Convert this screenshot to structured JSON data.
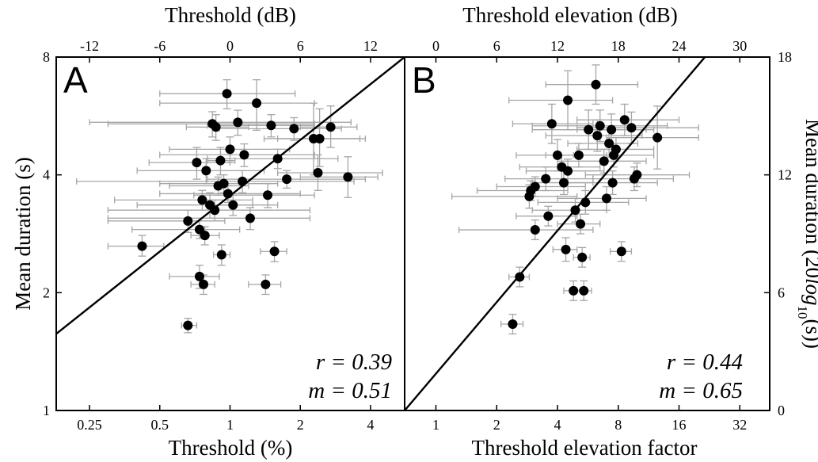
{
  "chart_data": [
    {
      "type": "scatter",
      "panel_label": "A",
      "xlabel": "Threshold (%)",
      "xlabel_top": "Threshold (dB)",
      "ylabel": "Mean duration (s)",
      "x_scale": "log2",
      "y_scale": "log2",
      "xlim": [
        0.18,
        5.6
      ],
      "ylim": [
        1,
        8
      ],
      "x_ticks": [
        {
          "v": 0.25,
          "label": "0.25"
        },
        {
          "v": 0.5,
          "label": "0.5"
        },
        {
          "v": 1,
          "label": "1"
        },
        {
          "v": 2,
          "label": "2"
        },
        {
          "v": 4,
          "label": "4"
        }
      ],
      "x_top_ticks": [
        {
          "v": 0.25,
          "label": "-12"
        },
        {
          "v": 0.5,
          "label": "-6"
        },
        {
          "v": 1,
          "label": "0"
        },
        {
          "v": 2,
          "label": "6"
        },
        {
          "v": 4,
          "label": "12"
        }
      ],
      "y_ticks": [
        {
          "v": 1,
          "label": "1"
        },
        {
          "v": 2,
          "label": "2"
        },
        {
          "v": 4,
          "label": "4"
        },
        {
          "v": 8,
          "label": "8"
        }
      ],
      "points": [
        {
          "x": 0.42,
          "y": 2.63,
          "xlo": 0.3,
          "xhi": 0.52,
          "ylo": 2.48,
          "yhi": 2.8
        },
        {
          "x": 0.66,
          "y": 1.65,
          "xlo": 0.62,
          "xhi": 0.72,
          "ylo": 1.58,
          "yhi": 1.72
        },
        {
          "x": 0.66,
          "y": 3.05,
          "xlo": 0.3,
          "xhi": 0.95,
          "ylo": 2.85,
          "yhi": 3.25
        },
        {
          "x": 0.72,
          "y": 4.3,
          "xlo": 0.45,
          "xhi": 1.0,
          "ylo": 3.9,
          "yhi": 4.7
        },
        {
          "x": 0.74,
          "y": 2.9,
          "xlo": 0.38,
          "xhi": 1.1,
          "ylo": 2.75,
          "yhi": 3.05
        },
        {
          "x": 0.74,
          "y": 2.2,
          "xlo": 0.55,
          "xhi": 0.9,
          "ylo": 2.05,
          "yhi": 2.35
        },
        {
          "x": 0.76,
          "y": 3.45,
          "xlo": 0.32,
          "xhi": 1.25,
          "ylo": 3.25,
          "yhi": 3.65
        },
        {
          "x": 0.77,
          "y": 2.1,
          "xlo": 0.68,
          "xhi": 0.86,
          "ylo": 1.98,
          "yhi": 2.22
        },
        {
          "x": 0.78,
          "y": 2.8,
          "xlo": 0.68,
          "xhi": 0.9,
          "ylo": 2.65,
          "yhi": 2.95
        },
        {
          "x": 0.79,
          "y": 4.1,
          "xlo": 0.4,
          "xhi": 1.4,
          "ylo": 3.8,
          "yhi": 4.4
        },
        {
          "x": 0.82,
          "y": 3.35,
          "xlo": 0.4,
          "xhi": 1.6,
          "ylo": 3.1,
          "yhi": 3.6
        },
        {
          "x": 0.84,
          "y": 5.4,
          "xlo": 0.3,
          "xhi": 2.3,
          "ylo": 5.0,
          "yhi": 5.8
        },
        {
          "x": 0.86,
          "y": 3.25,
          "xlo": 0.3,
          "xhi": 2.2,
          "ylo": 3.05,
          "yhi": 3.45
        },
        {
          "x": 0.87,
          "y": 5.3,
          "xlo": 0.65,
          "xhi": 1.2,
          "ylo": 4.9,
          "yhi": 5.7
        },
        {
          "x": 0.89,
          "y": 3.75,
          "xlo": 0.55,
          "xhi": 1.2,
          "ylo": 3.55,
          "yhi": 3.95
        },
        {
          "x": 0.91,
          "y": 4.35,
          "xlo": 0.8,
          "xhi": 1.05,
          "ylo": 4.0,
          "yhi": 4.7
        },
        {
          "x": 0.92,
          "y": 2.5,
          "xlo": 0.85,
          "xhi": 1.0,
          "ylo": 2.35,
          "yhi": 2.65
        },
        {
          "x": 0.94,
          "y": 3.8,
          "xlo": 0.5,
          "xhi": 1.6,
          "ylo": 3.6,
          "yhi": 4.0
        },
        {
          "x": 0.98,
          "y": 3.58,
          "xlo": 0.5,
          "xhi": 2.0,
          "ylo": 3.4,
          "yhi": 3.75
        },
        {
          "x": 0.97,
          "y": 6.45,
          "xlo": 0.5,
          "xhi": 1.9,
          "ylo": 5.9,
          "yhi": 7.0
        },
        {
          "x": 1.0,
          "y": 4.65,
          "xlo": 0.55,
          "xhi": 1.8,
          "ylo": 4.3,
          "yhi": 5.0
        },
        {
          "x": 1.03,
          "y": 3.35,
          "xlo": 0.85,
          "xhi": 1.25,
          "ylo": 3.15,
          "yhi": 3.55
        },
        {
          "x": 1.08,
          "y": 5.45,
          "xlo": 0.25,
          "xhi": 3.3,
          "ylo": 5.05,
          "yhi": 5.85
        },
        {
          "x": 1.13,
          "y": 3.85,
          "xlo": 0.22,
          "xhi": 3.4,
          "ylo": 3.6,
          "yhi": 4.1
        },
        {
          "x": 1.15,
          "y": 4.5,
          "xlo": 0.5,
          "xhi": 2.3,
          "ylo": 4.2,
          "yhi": 4.8
        },
        {
          "x": 1.22,
          "y": 3.1,
          "xlo": 0.3,
          "xhi": 2.2,
          "ylo": 2.9,
          "yhi": 3.3
        },
        {
          "x": 1.3,
          "y": 6.1,
          "xlo": 0.5,
          "xhi": 2.3,
          "ylo": 5.2,
          "yhi": 7.0
        },
        {
          "x": 1.42,
          "y": 2.1,
          "xlo": 1.2,
          "xhi": 1.65,
          "ylo": 1.98,
          "yhi": 2.22
        },
        {
          "x": 1.45,
          "y": 3.55,
          "xlo": 0.7,
          "xhi": 2.3,
          "ylo": 3.3,
          "yhi": 3.8
        },
        {
          "x": 1.5,
          "y": 5.35,
          "xlo": 0.8,
          "xhi": 2.3,
          "ylo": 5.0,
          "yhi": 5.7
        },
        {
          "x": 1.55,
          "y": 2.55,
          "xlo": 1.35,
          "xhi": 1.75,
          "ylo": 2.4,
          "yhi": 2.7
        },
        {
          "x": 1.6,
          "y": 4.4,
          "xlo": 0.8,
          "xhi": 2.9,
          "ylo": 4.15,
          "yhi": 4.65
        },
        {
          "x": 1.75,
          "y": 3.9,
          "xlo": 0.8,
          "xhi": 3.8,
          "ylo": 3.7,
          "yhi": 4.1
        },
        {
          "x": 1.88,
          "y": 5.25,
          "xlo": 0.9,
          "xhi": 3.0,
          "ylo": 4.9,
          "yhi": 5.6
        },
        {
          "x": 2.28,
          "y": 4.95,
          "xlo": 1.4,
          "xhi": 3.8,
          "ylo": 4.0,
          "yhi": 6.1
        },
        {
          "x": 2.38,
          "y": 4.05,
          "xlo": 1.6,
          "xhi": 4.5,
          "ylo": 3.65,
          "yhi": 4.5
        },
        {
          "x": 2.42,
          "y": 4.95,
          "xlo": 1.6,
          "xhi": 3.6,
          "ylo": 4.2,
          "yhi": 5.9
        },
        {
          "x": 2.7,
          "y": 5.3,
          "xlo": 2.0,
          "xhi": 3.5,
          "ylo": 4.7,
          "yhi": 6.0
        },
        {
          "x": 3.2,
          "y": 3.95,
          "xlo": 2.0,
          "xhi": 4.3,
          "ylo": 3.5,
          "yhi": 4.45
        }
      ],
      "fit_line": [
        {
          "x": 0.18,
          "y": 1.57
        },
        {
          "x": 5.6,
          "y": 8.0
        }
      ],
      "annotations": [
        "r = 0.39",
        "m = 0.51"
      ]
    },
    {
      "type": "scatter",
      "panel_label": "B",
      "xlabel": "Threshold elevation factor",
      "xlabel_top": "Threshold elevation (dB)",
      "ylabel": "Mean duration (20log10(s))",
      "x_scale": "log2",
      "y_scale": "linear_dB",
      "xlim": [
        0.7,
        45
      ],
      "ylim": [
        0,
        18
      ],
      "x_ticks": [
        {
          "v": 1,
          "label": "1"
        },
        {
          "v": 2,
          "label": "2"
        },
        {
          "v": 4,
          "label": "4"
        },
        {
          "v": 8,
          "label": "8"
        },
        {
          "v": 16,
          "label": "16"
        },
        {
          "v": 32,
          "label": "32"
        }
      ],
      "x_top_ticks": [
        {
          "v": 1,
          "label": "0"
        },
        {
          "v": 2,
          "label": "6"
        },
        {
          "v": 4,
          "label": "12"
        },
        {
          "v": 8,
          "label": "18"
        },
        {
          "v": 16,
          "label": "24"
        },
        {
          "v": 32,
          "label": "30"
        }
      ],
      "y_ticks": [
        {
          "v": 0,
          "label": "0"
        },
        {
          "v": 6,
          "label": "6"
        },
        {
          "v": 12,
          "label": "12"
        },
        {
          "v": 18,
          "label": "18"
        }
      ],
      "points": [
        {
          "x": 2.4,
          "y": 4.4,
          "xlo": 2.1,
          "xhi": 2.7,
          "ylo": 3.9,
          "yhi": 4.9
        },
        {
          "x": 2.6,
          "y": 6.8,
          "xlo": 2.3,
          "xhi": 2.9,
          "ylo": 6.3,
          "yhi": 7.3
        },
        {
          "x": 2.9,
          "y": 10.9,
          "xlo": 1.2,
          "xhi": 5.0,
          "ylo": 10.3,
          "yhi": 11.5
        },
        {
          "x": 2.95,
          "y": 11.2,
          "xlo": 1.6,
          "xhi": 4.5,
          "ylo": 10.7,
          "yhi": 11.7
        },
        {
          "x": 3.1,
          "y": 9.2,
          "xlo": 1.3,
          "xhi": 6.0,
          "ylo": 8.7,
          "yhi": 9.7
        },
        {
          "x": 3.1,
          "y": 11.4,
          "xlo": 2.0,
          "xhi": 5.5,
          "ylo": 10.9,
          "yhi": 11.9
        },
        {
          "x": 3.5,
          "y": 11.8,
          "xlo": 2.2,
          "xhi": 6.0,
          "ylo": 11.2,
          "yhi": 12.4
        },
        {
          "x": 3.6,
          "y": 9.9,
          "xlo": 2.5,
          "xhi": 5.0,
          "ylo": 9.4,
          "yhi": 10.4
        },
        {
          "x": 3.75,
          "y": 14.6,
          "xlo": 2.4,
          "xhi": 6.0,
          "ylo": 13.6,
          "yhi": 15.6
        },
        {
          "x": 4.0,
          "y": 13.0,
          "xlo": 2.5,
          "xhi": 7.0,
          "ylo": 12.2,
          "yhi": 13.8
        },
        {
          "x": 4.2,
          "y": 12.4,
          "xlo": 2.6,
          "xhi": 6.5,
          "ylo": 11.8,
          "yhi": 13.0
        },
        {
          "x": 4.3,
          "y": 11.6,
          "xlo": 3.0,
          "xhi": 6.0,
          "ylo": 11.0,
          "yhi": 12.2
        },
        {
          "x": 4.4,
          "y": 8.2,
          "xlo": 3.8,
          "xhi": 5.0,
          "ylo": 7.6,
          "yhi": 8.8
        },
        {
          "x": 4.5,
          "y": 15.8,
          "xlo": 2.3,
          "xhi": 7.5,
          "ylo": 14.3,
          "yhi": 17.3
        },
        {
          "x": 4.5,
          "y": 12.2,
          "xlo": 2.8,
          "xhi": 6.8,
          "ylo": 11.6,
          "yhi": 12.8
        },
        {
          "x": 4.8,
          "y": 6.1,
          "xlo": 4.3,
          "xhi": 5.3,
          "ylo": 5.6,
          "yhi": 6.6
        },
        {
          "x": 4.9,
          "y": 10.2,
          "xlo": 3.0,
          "xhi": 7.0,
          "ylo": 9.6,
          "yhi": 10.8
        },
        {
          "x": 5.1,
          "y": 13.0,
          "xlo": 3.5,
          "xhi": 7.5,
          "ylo": 12.4,
          "yhi": 13.6
        },
        {
          "x": 5.2,
          "y": 9.5,
          "xlo": 4.0,
          "xhi": 6.5,
          "ylo": 9.0,
          "yhi": 10.0
        },
        {
          "x": 5.3,
          "y": 7.8,
          "xlo": 4.8,
          "xhi": 5.8,
          "ylo": 7.3,
          "yhi": 8.3
        },
        {
          "x": 5.4,
          "y": 6.1,
          "xlo": 4.9,
          "xhi": 5.9,
          "ylo": 5.6,
          "yhi": 6.6
        },
        {
          "x": 5.5,
          "y": 10.6,
          "xlo": 3.2,
          "xhi": 9.0,
          "ylo": 10.0,
          "yhi": 11.2
        },
        {
          "x": 5.7,
          "y": 14.3,
          "xlo": 3.0,
          "xhi": 12.0,
          "ylo": 13.3,
          "yhi": 15.3
        },
        {
          "x": 6.2,
          "y": 16.6,
          "xlo": 3.5,
          "xhi": 10.0,
          "ylo": 15.6,
          "yhi": 17.6
        },
        {
          "x": 6.3,
          "y": 14.0,
          "xlo": 3.5,
          "xhi": 10.5,
          "ylo": 13.2,
          "yhi": 14.8
        },
        {
          "x": 6.5,
          "y": 14.5,
          "xlo": 3.0,
          "xhi": 14.0,
          "ylo": 13.7,
          "yhi": 15.3
        },
        {
          "x": 6.8,
          "y": 12.7,
          "xlo": 4.0,
          "xhi": 11.0,
          "ylo": 12.1,
          "yhi": 13.3
        },
        {
          "x": 7.0,
          "y": 10.8,
          "xlo": 4.0,
          "xhi": 11.0,
          "ylo": 10.2,
          "yhi": 11.4
        },
        {
          "x": 7.2,
          "y": 13.6,
          "xlo": 4.5,
          "xhi": 10.0,
          "ylo": 12.9,
          "yhi": 14.3
        },
        {
          "x": 7.4,
          "y": 14.3,
          "xlo": 5.0,
          "xhi": 11.0,
          "ylo": 13.5,
          "yhi": 15.1
        },
        {
          "x": 7.5,
          "y": 11.6,
          "xlo": 4.5,
          "xhi": 12.5,
          "ylo": 11.0,
          "yhi": 12.2
        },
        {
          "x": 7.6,
          "y": 13.0,
          "xlo": 4.8,
          "xhi": 12.0,
          "ylo": 12.4,
          "yhi": 13.6
        },
        {
          "x": 7.8,
          "y": 13.3,
          "xlo": 5.0,
          "xhi": 12.0,
          "ylo": 12.7,
          "yhi": 13.9
        },
        {
          "x": 8.3,
          "y": 8.1,
          "xlo": 7.3,
          "xhi": 9.3,
          "ylo": 7.6,
          "yhi": 8.6
        },
        {
          "x": 8.6,
          "y": 14.8,
          "xlo": 5.0,
          "xhi": 16.0,
          "ylo": 14.0,
          "yhi": 15.6
        },
        {
          "x": 9.3,
          "y": 14.4,
          "xlo": 5.0,
          "xhi": 20.0,
          "ylo": 13.6,
          "yhi": 15.2
        },
        {
          "x": 9.6,
          "y": 11.8,
          "xlo": 6.0,
          "xhi": 15.0,
          "ylo": 11.2,
          "yhi": 12.4
        },
        {
          "x": 9.9,
          "y": 12.0,
          "xlo": 5.5,
          "xhi": 18.0,
          "ylo": 11.4,
          "yhi": 12.6
        },
        {
          "x": 12.5,
          "y": 13.9,
          "xlo": 7.0,
          "xhi": 20.0,
          "ylo": 12.3,
          "yhi": 15.5
        }
      ],
      "fit_line": [
        {
          "x": 0.7,
          "y": 0.0
        },
        {
          "x": 21.5,
          "y": 18.0
        }
      ],
      "annotations": [
        "r = 0.44",
        "m = 0.65"
      ]
    }
  ],
  "colors": {
    "marker": "#000000",
    "errorbar": "#a6a6a6",
    "fitline": "#000000",
    "axes": "#000000"
  }
}
